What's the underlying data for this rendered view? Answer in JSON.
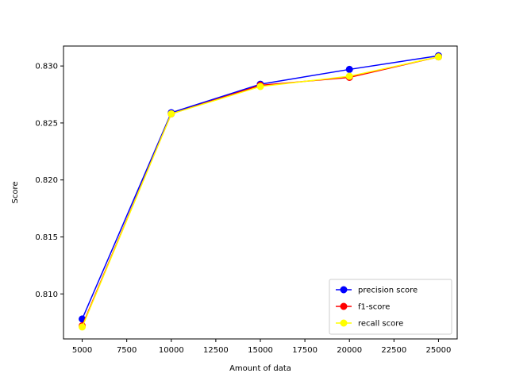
{
  "chart_data": {
    "type": "line",
    "title": "",
    "xlabel": "Amount of data",
    "ylabel": "Score",
    "x": [
      5000,
      10000,
      15000,
      20000,
      25000
    ],
    "xlim": [
      3950,
      26050
    ],
    "ylim": [
      0.80605,
      0.83175
    ],
    "xticks": [
      5000,
      7500,
      10000,
      12500,
      15000,
      17500,
      20000,
      22500,
      25000
    ],
    "xtick_labels": [
      "5000",
      "7500",
      "10000",
      "12500",
      "15000",
      "17500",
      "20000",
      "22500",
      "25000"
    ],
    "yticks": [
      0.81,
      0.815,
      0.82,
      0.825,
      0.83
    ],
    "ytick_labels": [
      "0.810",
      "0.815",
      "0.820",
      "0.825",
      "0.830"
    ],
    "grid": false,
    "legend_position": "lower right",
    "series": [
      {
        "name": "precision score",
        "color": "#0000ff",
        "marker": "circle",
        "values": [
          0.8078,
          0.8259,
          0.8284,
          0.8297,
          0.8309
        ]
      },
      {
        "name": "f1-score",
        "color": "#ff0000",
        "marker": "circle",
        "values": [
          0.8072,
          0.8258,
          0.8283,
          0.829,
          0.8308
        ]
      },
      {
        "name": "recall score",
        "color": "#ffff00",
        "marker": "circle",
        "values": [
          0.8071,
          0.8258,
          0.8282,
          0.8291,
          0.8308
        ]
      }
    ]
  }
}
